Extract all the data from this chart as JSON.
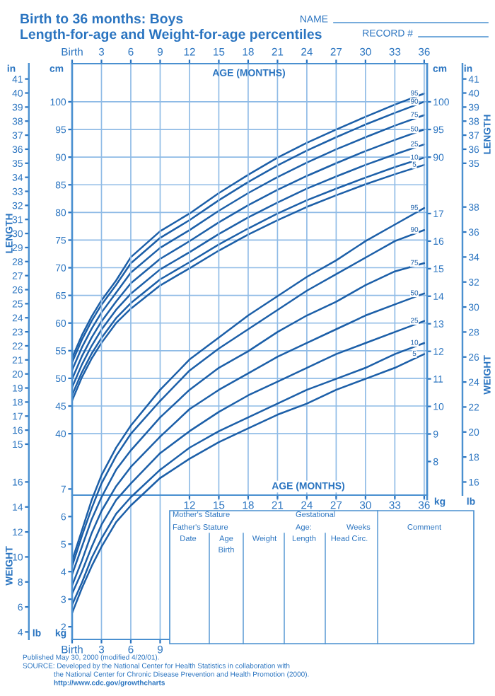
{
  "chart_data": [
    {
      "type": "line",
      "title": "Birth to 36 months: Boys",
      "subtitle": "Length-for-age and Weight-for-age percentiles",
      "ylabel": "LENGTH",
      "y2label": "LENGTH",
      "x": [
        0,
        1,
        2,
        3,
        4.5,
        6,
        9,
        12,
        15,
        18,
        21,
        24,
        27,
        30,
        33,
        36
      ],
      "xlim": [
        0,
        36.3
      ],
      "x2lim": [
        0,
        36.3
      ],
      "x2ticks": [
        {
          "value": 0,
          "label": "Birth"
        },
        3,
        6,
        9,
        12,
        15,
        18,
        21,
        24,
        27,
        30,
        33,
        36
      ],
      "ylim": [
        2.8,
        106.9
      ],
      "yticks": [
        40,
        45,
        50,
        55,
        60,
        65,
        70,
        75,
        80,
        85,
        90,
        95,
        100
      ],
      "y2lim": [
        2.8,
        106.9
      ],
      "y2ticks": [
        90,
        95,
        100
      ],
      "y3lim": [
        1.1,
        42.09
      ],
      "y3ticks": [
        15,
        16,
        17,
        18,
        19,
        20,
        21,
        22,
        23,
        24,
        25,
        26,
        27,
        28,
        29,
        30,
        31,
        32,
        33,
        34,
        35,
        36,
        37,
        38,
        39,
        40,
        41
      ],
      "grid": true,
      "series": [
        {
          "name": "95",
          "color": "#1c5fa8",
          "values": [
            53.7,
            57.8,
            61.2,
            64.1,
            67.7,
            71.9,
            76.6,
            79.8,
            83.5,
            86.8,
            89.9,
            92.6,
            95.0,
            97.3,
            99.5,
            101.5
          ]
        },
        {
          "name": "90",
          "color": "#1c5fa8",
          "values": [
            52.9,
            57.0,
            60.4,
            63.3,
            66.9,
            70.8,
            75.4,
            78.6,
            82.2,
            85.5,
            88.5,
            91.2,
            93.6,
            95.9,
            98.0,
            100.0
          ]
        },
        {
          "name": "75",
          "color": "#1c5fa8",
          "values": [
            51.5,
            55.6,
            59.0,
            61.9,
            65.5,
            69.1,
            73.6,
            76.8,
            80.3,
            83.5,
            86.4,
            89.0,
            91.4,
            93.6,
            95.7,
            97.6
          ]
        },
        {
          "name": "50",
          "color": "#1c5fa8",
          "values": [
            49.9,
            54.0,
            57.4,
            60.3,
            63.9,
            67.2,
            71.6,
            74.8,
            78.2,
            81.3,
            84.1,
            86.6,
            88.9,
            91.1,
            93.1,
            95.0
          ]
        },
        {
          "name": "25",
          "color": "#1c5fa8",
          "values": [
            48.4,
            52.5,
            55.9,
            58.8,
            62.4,
            65.3,
            69.7,
            72.8,
            76.1,
            79.1,
            81.8,
            84.3,
            86.5,
            88.6,
            90.5,
            92.3
          ]
        },
        {
          "name": "10",
          "color": "#1c5fa8",
          "values": [
            47.0,
            51.1,
            54.5,
            57.3,
            60.9,
            63.6,
            67.9,
            71.0,
            74.2,
            77.1,
            79.8,
            82.2,
            84.3,
            86.3,
            88.2,
            89.9
          ]
        },
        {
          "name": "5",
          "color": "#1c5fa8",
          "values": [
            46.0,
            50.2,
            53.6,
            56.4,
            60.0,
            62.6,
            66.8,
            69.9,
            73.1,
            76.0,
            78.6,
            81.0,
            83.1,
            85.1,
            86.9,
            88.6
          ]
        }
      ],
      "annotations": [
        "NAME",
        "RECORD #",
        "AGE (MONTHS)",
        "AGE (MONTHS)",
        "in",
        "cm",
        "cm",
        "in",
        "kg",
        "lb",
        "lb",
        "kg",
        "Mother's Stature",
        "Father's Stature",
        "Gestational",
        "Age:",
        "Weeks",
        "Comment",
        "Date",
        "Age",
        "Weight",
        "Length",
        "Head Circ.",
        "Birth",
        "Published May 30, 2000 (modified 4/20/01).",
        "SOURCE: Developed by the National Center for Health Statistics in collaboration with",
        "the National Center for Chronic Disease Prevention and Health Promotion (2000).",
        "http://www.cdc.gov/growthcharts"
      ]
    },
    {
      "type": "line",
      "y2label": "WEIGHT",
      "x": [
        9,
        12,
        15,
        18,
        21,
        24,
        27,
        30,
        33,
        36
      ],
      "xlim": [
        0,
        36.3
      ],
      "xticks": [
        12,
        15,
        18,
        21,
        24,
        27,
        30,
        33,
        36
      ],
      "ylim": [
        6.78,
        22.44
      ],
      "yticks": [
        8,
        9,
        10,
        11,
        12,
        13,
        14,
        15,
        16,
        17
      ],
      "y2lim": [
        14.95,
        49.47
      ],
      "y2ticks": [
        16,
        18,
        20,
        22,
        24,
        26,
        28,
        30,
        32,
        34,
        36,
        38
      ],
      "y3lim": [
        11.38,
        42.09
      ],
      "y3ticks": [
        35,
        36,
        37,
        38,
        39,
        40,
        41
      ],
      "series": [
        {
          "name": "95",
          "color": "#1c5fa8",
          "values": [
            10.6,
            11.7,
            12.5,
            13.3,
            14.0,
            14.7,
            15.3,
            16.0,
            16.6,
            17.2
          ]
        },
        {
          "name": "90",
          "color": "#1c5fa8",
          "values": [
            10.2,
            11.3,
            12.1,
            12.8,
            13.5,
            14.2,
            14.8,
            15.4,
            16.0,
            16.4
          ]
        },
        {
          "name": "75",
          "color": "#1c5fa8",
          "values": [
            9.6,
            10.6,
            11.4,
            12.0,
            12.7,
            13.3,
            13.8,
            14.4,
            14.9,
            15.2
          ]
        },
        {
          "name": "50",
          "color": "#1c5fa8",
          "values": [
            8.9,
            9.9,
            10.6,
            11.2,
            11.8,
            12.3,
            12.8,
            13.3,
            13.7,
            14.1
          ]
        },
        {
          "name": "25",
          "color": "#1c5fa8",
          "values": [
            8.3,
            9.1,
            9.8,
            10.4,
            10.9,
            11.4,
            11.9,
            12.3,
            12.7,
            13.1
          ]
        },
        {
          "name": "10",
          "color": "#1c5fa8",
          "values": [
            7.7,
            8.5,
            9.1,
            9.6,
            10.1,
            10.6,
            11.0,
            11.4,
            11.9,
            12.3
          ]
        },
        {
          "name": "5",
          "color": "#1c5fa8",
          "values": [
            7.4,
            8.1,
            8.7,
            9.2,
            9.7,
            10.1,
            10.6,
            11.0,
            11.4,
            11.9
          ]
        }
      ]
    },
    {
      "type": "line",
      "y2label": "WEIGHT",
      "x": [
        0,
        1,
        2,
        3,
        4.5,
        6,
        9
      ],
      "xlim": [
        0,
        36.3
      ],
      "xticks": [
        {
          "value": 0,
          "label": "Birth"
        },
        3,
        6,
        9
      ],
      "ylim": [
        1.54,
        22.44
      ],
      "yticks": [
        2,
        3,
        4,
        5,
        6,
        7
      ],
      "y2lim": [
        3.4,
        49.47
      ],
      "y2ticks": [
        4,
        6,
        8,
        10,
        12,
        14,
        16
      ],
      "series": [
        {
          "color": "#1c5fa8",
          "values": [
            4.4,
            5.5,
            6.6,
            7.5,
            8.5,
            9.3,
            10.6
          ]
        },
        {
          "color": "#1c5fa8",
          "values": [
            4.2,
            5.3,
            6.3,
            7.2,
            8.2,
            9.0,
            10.2
          ]
        },
        {
          "color": "#1c5fa8",
          "values": [
            3.9,
            4.9,
            5.9,
            6.7,
            7.7,
            8.4,
            9.6
          ]
        },
        {
          "color": "#1c5fa8",
          "values": [
            3.5,
            4.4,
            5.4,
            6.2,
            7.1,
            7.8,
            8.9
          ]
        },
        {
          "color": "#1c5fa8",
          "values": [
            3.2,
            4.0,
            4.9,
            5.7,
            6.6,
            7.2,
            8.3
          ]
        },
        {
          "color": "#1c5fa8",
          "values": [
            2.8,
            3.6,
            4.5,
            5.2,
            6.1,
            6.7,
            7.7
          ]
        },
        {
          "color": "#1c5fa8",
          "values": [
            2.5,
            3.4,
            4.2,
            4.9,
            5.8,
            6.4,
            7.4
          ]
        }
      ]
    }
  ]
}
